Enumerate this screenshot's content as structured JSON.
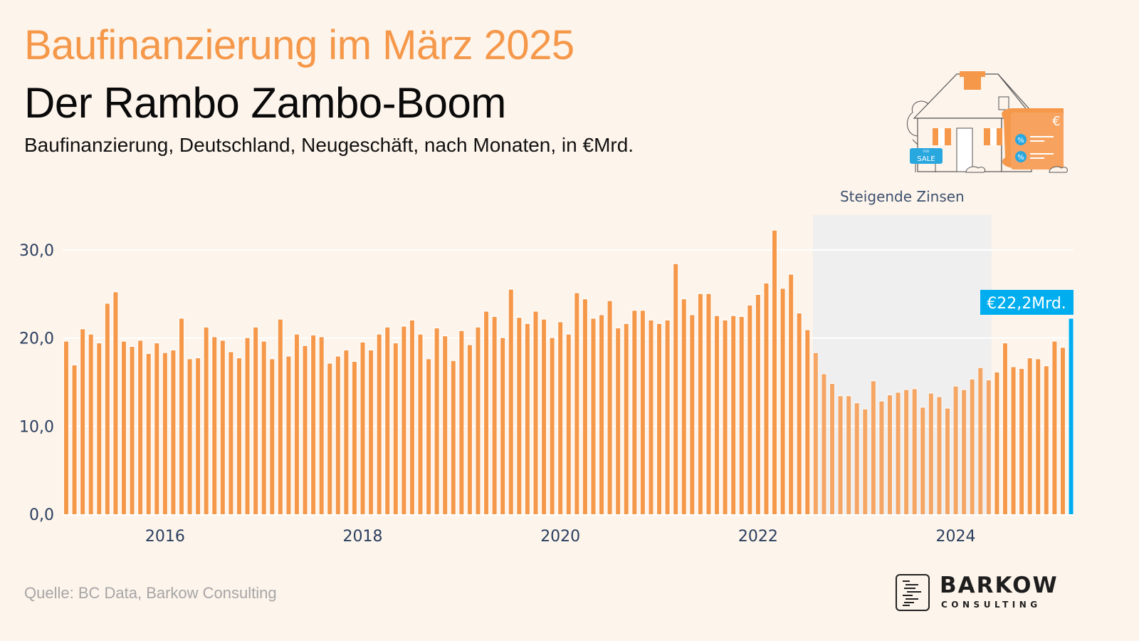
{
  "header": {
    "title": "Baufinanzierung im März 2025",
    "subtitle": "Der Rambo Zambo-Boom",
    "description": "Baufinanzierung, Deutschland, Neugeschäft, nach Monaten, in €Mrd."
  },
  "illustration": {
    "icon": "house-for-sale-euro-document-icon",
    "sign_small": "FOR",
    "sign_large": "SALE",
    "currency_glyph": "€",
    "percent_glyph": "%"
  },
  "footer": {
    "source": "Quelle: BC Data, Barkow Consulting",
    "logo_name": "BARKOW",
    "logo_sub": "CONSULTING"
  },
  "colors": {
    "background": "#fdf4eb",
    "bar": "#f5984a",
    "highlight": "#00aeef",
    "title": "#f5984a",
    "axis_text": "#2a3f5f",
    "shade": "#efefef",
    "source": "#a6a6a6"
  },
  "chart_data": {
    "type": "bar",
    "title": "Baufinanzierung, Deutschland, Neugeschäft, nach Monaten, in €Mrd.",
    "xlabel": "",
    "ylabel": "",
    "ylim": [
      0,
      32.5
    ],
    "yticks": [
      0,
      10,
      20,
      30
    ],
    "ytick_labels": [
      "0,0",
      "10,0",
      "20,0",
      "30,0"
    ],
    "xtick_labels": [
      "2016",
      "2018",
      "2020",
      "2022",
      "2024"
    ],
    "grid": "horizontal",
    "legend": "none",
    "start": "2015-01",
    "end": "2025-03",
    "annotations": [
      {
        "type": "shaded_region",
        "label": "Steigende Zinsen",
        "from": "2022-08",
        "to": "2024-05"
      },
      {
        "type": "value_label",
        "label": "€22,2Mrd.",
        "at": "2025-03",
        "color": "#00aeef"
      }
    ],
    "categories": [
      "2015-01",
      "2015-02",
      "2015-03",
      "2015-04",
      "2015-05",
      "2015-06",
      "2015-07",
      "2015-08",
      "2015-09",
      "2015-10",
      "2015-11",
      "2015-12",
      "2016-01",
      "2016-02",
      "2016-03",
      "2016-04",
      "2016-05",
      "2016-06",
      "2016-07",
      "2016-08",
      "2016-09",
      "2016-10",
      "2016-11",
      "2016-12",
      "2017-01",
      "2017-02",
      "2017-03",
      "2017-04",
      "2017-05",
      "2017-06",
      "2017-07",
      "2017-08",
      "2017-09",
      "2017-10",
      "2017-11",
      "2017-12",
      "2018-01",
      "2018-02",
      "2018-03",
      "2018-04",
      "2018-05",
      "2018-06",
      "2018-07",
      "2018-08",
      "2018-09",
      "2018-10",
      "2018-11",
      "2018-12",
      "2019-01",
      "2019-02",
      "2019-03",
      "2019-04",
      "2019-05",
      "2019-06",
      "2019-07",
      "2019-08",
      "2019-09",
      "2019-10",
      "2019-11",
      "2019-12",
      "2020-01",
      "2020-02",
      "2020-03",
      "2020-04",
      "2020-05",
      "2020-06",
      "2020-07",
      "2020-08",
      "2020-09",
      "2020-10",
      "2020-11",
      "2020-12",
      "2021-01",
      "2021-02",
      "2021-03",
      "2021-04",
      "2021-05",
      "2021-06",
      "2021-07",
      "2021-08",
      "2021-09",
      "2021-10",
      "2021-11",
      "2021-12",
      "2022-01",
      "2022-02",
      "2022-03",
      "2022-04",
      "2022-05",
      "2022-06",
      "2022-07",
      "2022-08",
      "2022-09",
      "2022-10",
      "2022-11",
      "2022-12",
      "2023-01",
      "2023-02",
      "2023-03",
      "2023-04",
      "2023-05",
      "2023-06",
      "2023-07",
      "2023-08",
      "2023-09",
      "2023-10",
      "2023-11",
      "2023-12",
      "2024-01",
      "2024-02",
      "2024-03",
      "2024-04",
      "2024-05",
      "2024-06",
      "2024-07",
      "2024-08",
      "2024-09",
      "2024-10",
      "2024-11",
      "2024-12",
      "2025-01",
      "2025-02",
      "2025-03"
    ],
    "values": [
      19.6,
      16.9,
      21.0,
      20.4,
      19.4,
      23.9,
      25.2,
      19.6,
      19.0,
      19.7,
      18.2,
      19.4,
      18.3,
      18.6,
      22.2,
      17.6,
      17.7,
      21.2,
      20.1,
      19.7,
      18.4,
      17.7,
      20.0,
      21.2,
      19.6,
      17.6,
      22.1,
      17.9,
      20.4,
      19.1,
      20.3,
      20.1,
      17.1,
      17.9,
      18.6,
      17.3,
      19.5,
      18.6,
      20.4,
      21.2,
      19.4,
      21.3,
      22.0,
      20.4,
      17.6,
      21.1,
      20.2,
      17.4,
      20.8,
      19.2,
      21.2,
      23.0,
      22.4,
      20.0,
      25.5,
      22.3,
      21.6,
      23.0,
      22.1,
      20.0,
      21.8,
      20.4,
      25.1,
      24.4,
      22.2,
      22.6,
      24.2,
      21.1,
      21.6,
      23.1,
      23.1,
      22.0,
      21.6,
      22.0,
      28.4,
      24.4,
      22.6,
      25.0,
      25.0,
      22.5,
      22.0,
      22.5,
      22.4,
      23.7,
      24.9,
      26.2,
      32.2,
      25.6,
      27.2,
      22.8,
      20.9,
      18.3,
      15.9,
      14.8,
      13.4,
      13.4,
      12.6,
      11.9,
      15.1,
      12.8,
      13.5,
      13.8,
      14.1,
      14.2,
      12.1,
      13.7,
      13.3,
      12.0,
      14.5,
      14.1,
      15.3,
      16.6,
      15.2,
      16.1,
      19.4,
      16.7,
      16.5,
      17.7,
      17.6,
      16.8,
      19.6,
      18.9,
      22.2
    ]
  }
}
